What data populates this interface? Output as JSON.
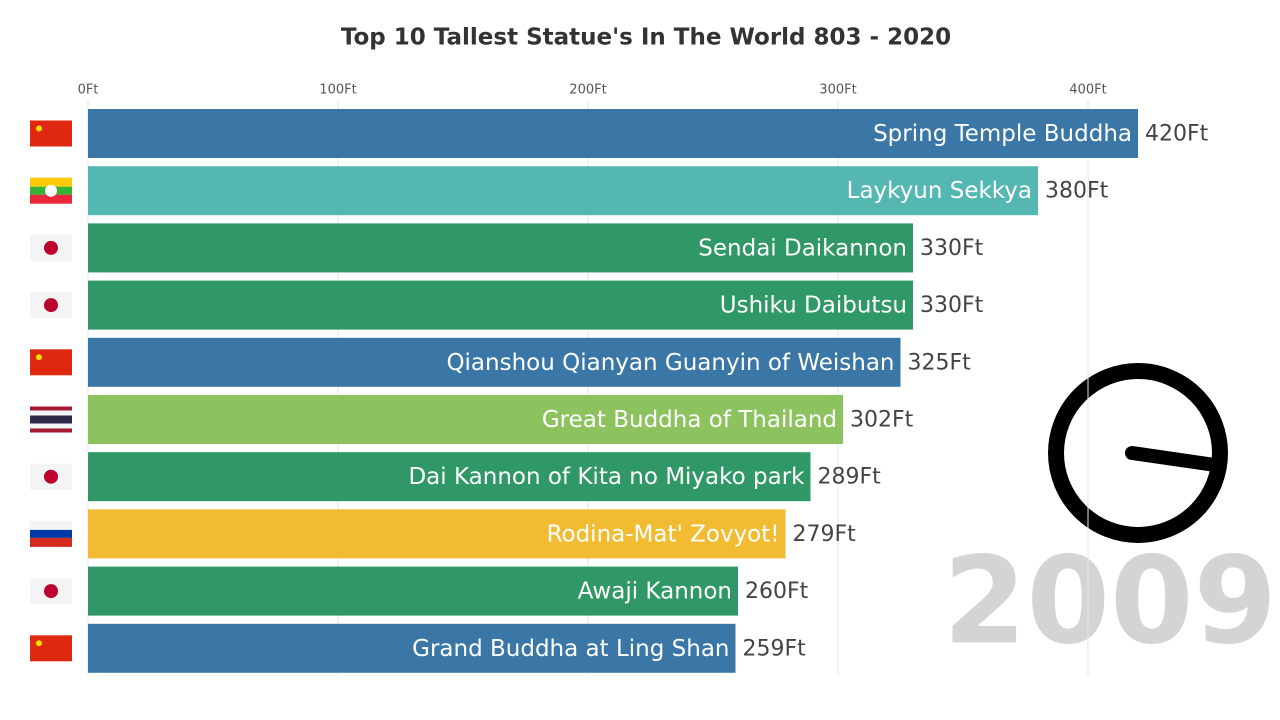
{
  "chart_data": {
    "type": "bar",
    "orientation": "horizontal",
    "title": "Top 10 Tallest Statue's In The World 803 - 2020",
    "categories": [
      "Spring Temple Buddha",
      "Laykyun Sekkya",
      "Sendai Daikannon",
      "Ushiku Daibutsu",
      "Qianshou Qianyan Guanyin of Weishan",
      "Great Buddha of Thailand",
      "Dai Kannon of Kita no Miyako park",
      "Rodina-Mat' Zovyot!",
      "Awaji Kannon",
      "Grand Buddha at Ling Shan"
    ],
    "values": [
      420,
      380,
      330,
      330,
      325,
      302,
      289,
      279,
      260,
      259
    ],
    "value_labels": [
      "420Ft",
      "380Ft",
      "330Ft",
      "330Ft",
      "325Ft",
      "302Ft",
      "289Ft",
      "279Ft",
      "260Ft",
      "259Ft"
    ],
    "colors": [
      "#3b77a6",
      "#55b7b2",
      "#2f9866",
      "#2f9866",
      "#3b77a6",
      "#8dc35f",
      "#2f9866",
      "#f1bc31",
      "#2f9866",
      "#3b77a6"
    ],
    "xlim": [
      0,
      470
    ],
    "xticks": [
      {
        "value": 0,
        "label": "0Ft"
      },
      {
        "value": 100,
        "label": "100Ft"
      },
      {
        "value": 200,
        "label": "200Ft"
      },
      {
        "value": 300,
        "label": "300Ft"
      },
      {
        "value": 400,
        "label": "400Ft"
      }
    ],
    "grid": true,
    "year_label": "2009"
  }
}
